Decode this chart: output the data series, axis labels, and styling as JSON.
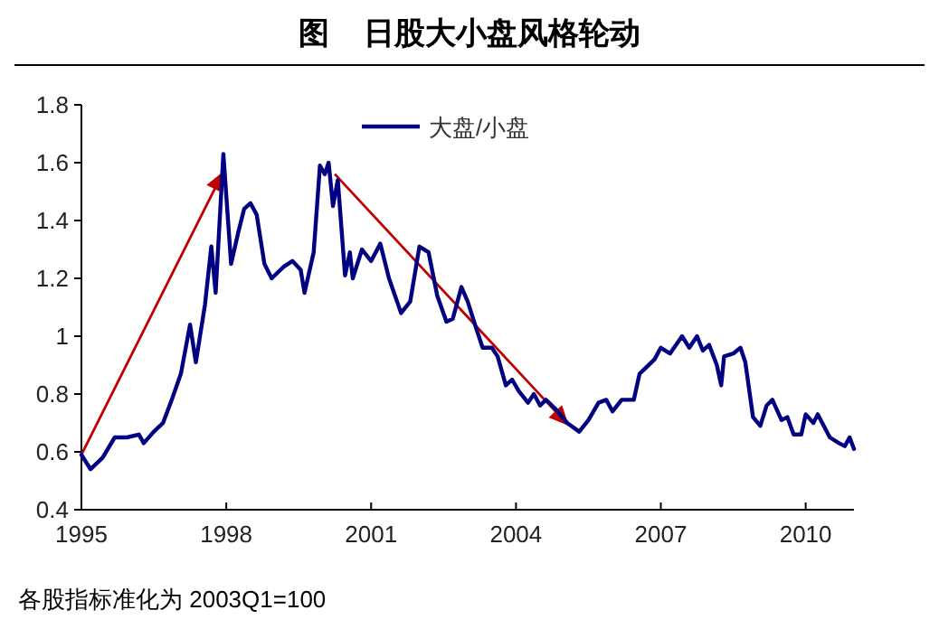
{
  "chart_data": {
    "type": "line",
    "title": "图    日股大小盘风格轮动",
    "annotations": [
      "各股指标准化为 2003Q1=100"
    ],
    "xlim": [
      1995,
      2011
    ],
    "xticks": [
      1995,
      1998,
      2001,
      2004,
      2007,
      2010
    ],
    "ylim": [
      0.4,
      1.8
    ],
    "yticks": [
      0.4,
      0.6,
      0.8,
      1,
      1.2,
      1.4,
      1.6,
      1.8
    ],
    "grid": false,
    "legend": "top right",
    "marker": "none",
    "line_style": "solid",
    "series": [
      {
        "name": "大盘/小盘",
        "color": "#000080",
        "x": [
          1995.0,
          1995.19,
          1995.44,
          1995.69,
          1995.94,
          1996.19,
          1996.29,
          1996.5,
          1996.69,
          1996.87,
          1997.06,
          1997.25,
          1997.37,
          1997.56,
          1997.69,
          1997.78,
          1997.94,
          1998.1,
          1998.25,
          1998.37,
          1998.5,
          1998.63,
          1998.79,
          1998.94,
          1999.19,
          1999.37,
          1999.54,
          1999.62,
          1999.81,
          1999.94,
          2000.04,
          2000.12,
          2000.21,
          2000.31,
          2000.46,
          2000.56,
          2000.62,
          2000.81,
          2001.0,
          2001.19,
          2001.37,
          2001.62,
          2001.81,
          2002.0,
          2002.19,
          2002.37,
          2002.56,
          2002.69,
          2002.87,
          2003.0,
          2003.17,
          2003.31,
          2003.5,
          2003.62,
          2003.79,
          2003.92,
          2004.06,
          2004.25,
          2004.37,
          2004.5,
          2004.62,
          2004.81,
          2005.06,
          2005.31,
          2005.5,
          2005.71,
          2005.87,
          2006.0,
          2006.19,
          2006.44,
          2006.56,
          2006.87,
          2007.0,
          2007.19,
          2007.44,
          2007.59,
          2007.75,
          2007.87,
          2008.0,
          2008.16,
          2008.25,
          2008.31,
          2008.5,
          2008.65,
          2008.75,
          2008.91,
          2009.06,
          2009.19,
          2009.31,
          2009.5,
          2009.62,
          2009.75,
          2009.91,
          2010.0,
          2010.16,
          2010.25,
          2010.5,
          2010.69,
          2010.81,
          2010.91,
          2011.0
        ],
        "values": [
          0.59,
          0.54,
          0.58,
          0.65,
          0.65,
          0.66,
          0.63,
          0.67,
          0.7,
          0.78,
          0.87,
          1.04,
          0.91,
          1.11,
          1.31,
          1.15,
          1.63,
          1.25,
          1.36,
          1.44,
          1.46,
          1.42,
          1.25,
          1.2,
          1.24,
          1.26,
          1.23,
          1.15,
          1.29,
          1.59,
          1.56,
          1.6,
          1.45,
          1.54,
          1.21,
          1.29,
          1.2,
          1.3,
          1.26,
          1.32,
          1.2,
          1.08,
          1.12,
          1.31,
          1.29,
          1.14,
          1.05,
          1.06,
          1.17,
          1.12,
          1.03,
          0.96,
          0.96,
          0.93,
          0.83,
          0.85,
          0.81,
          0.77,
          0.8,
          0.76,
          0.78,
          0.75,
          0.7,
          0.67,
          0.71,
          0.77,
          0.78,
          0.74,
          0.78,
          0.78,
          0.87,
          0.92,
          0.96,
          0.94,
          1.0,
          0.96,
          1.0,
          0.95,
          0.97,
          0.9,
          0.83,
          0.93,
          0.94,
          0.96,
          0.91,
          0.72,
          0.69,
          0.76,
          0.78,
          0.71,
          0.72,
          0.66,
          0.66,
          0.73,
          0.7,
          0.73,
          0.65,
          0.63,
          0.62,
          0.65,
          0.61
        ]
      }
    ]
  }
}
